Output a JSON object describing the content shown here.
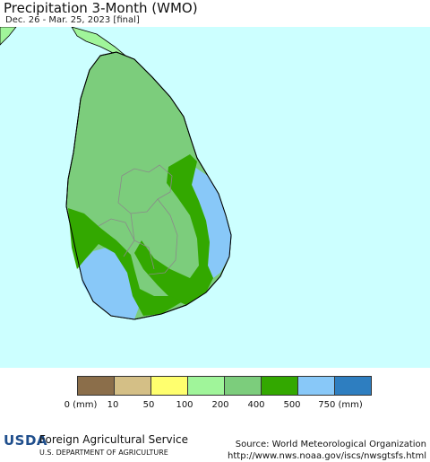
{
  "title": "Precipitation 3-Month (WMO)",
  "subtitle": "Dec. 26 - Mar. 25, 2023 [final]",
  "legend": {
    "colors": [
      "#8b6e4a",
      "#d4bf86",
      "#ffff6e",
      "#a0f59a",
      "#7ccd7c",
      "#33a800",
      "#88c8f8",
      "#2e7ec0"
    ],
    "labels": [
      "0 (mm)",
      "10",
      "50",
      "100",
      "200",
      "400",
      "500",
      "750 (mm)"
    ]
  },
  "colors": {
    "ocean": "#ccffff",
    "land_200_400": "#7ccd7c",
    "land_400_500": "#33a800",
    "land_500_750": "#88c8f8",
    "india": "#a0f59a"
  },
  "footer": {
    "logo": "USDA",
    "agency": "Foreign Agricultural Service",
    "department": "U.S. DEPARTMENT OF AGRICULTURE",
    "source_line1": "Source: World Meteorological Organization",
    "source_line2": "http://www.nws.noaa.gov/iscs/nwsgtsfs.html"
  }
}
